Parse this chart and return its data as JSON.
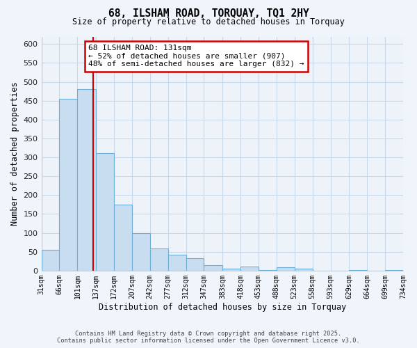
{
  "title": "68, ILSHAM ROAD, TORQUAY, TQ1 2HY",
  "subtitle": "Size of property relative to detached houses in Torquay",
  "xlabel": "Distribution of detached houses by size in Torquay",
  "ylabel": "Number of detached properties",
  "bar_edges": [
    31,
    66,
    101,
    137,
    172,
    207,
    242,
    277,
    312,
    347,
    383,
    418,
    453,
    488,
    523,
    558,
    593,
    629,
    664,
    699,
    734
  ],
  "bar_heights": [
    55,
    455,
    480,
    312,
    175,
    100,
    58,
    42,
    32,
    15,
    5,
    10,
    2,
    8,
    5,
    0,
    0,
    2,
    0,
    2
  ],
  "bar_color": "#c9ddf0",
  "bar_edge_color": "#6baed6",
  "vline_x": 131,
  "vline_color": "#cc0000",
  "annotation_title": "68 ILSHAM ROAD: 131sqm",
  "annotation_line1": "← 52% of detached houses are smaller (907)",
  "annotation_line2": "48% of semi-detached houses are larger (832) →",
  "annotation_box_color": "white",
  "annotation_box_edge": "#cc0000",
  "ylim": [
    0,
    620
  ],
  "yticks": [
    0,
    50,
    100,
    150,
    200,
    250,
    300,
    350,
    400,
    450,
    500,
    550,
    600
  ],
  "tick_labels": [
    "31sqm",
    "66sqm",
    "101sqm",
    "137sqm",
    "172sqm",
    "207sqm",
    "242sqm",
    "277sqm",
    "312sqm",
    "347sqm",
    "383sqm",
    "418sqm",
    "453sqm",
    "488sqm",
    "523sqm",
    "558sqm",
    "593sqm",
    "629sqm",
    "664sqm",
    "699sqm",
    "734sqm"
  ],
  "footer1": "Contains HM Land Registry data © Crown copyright and database right 2025.",
  "footer2": "Contains public sector information licensed under the Open Government Licence v3.0.",
  "bg_color": "#f0f4fb",
  "plot_bg_color": "#eef3fa",
  "grid_color": "#c8d8ea"
}
